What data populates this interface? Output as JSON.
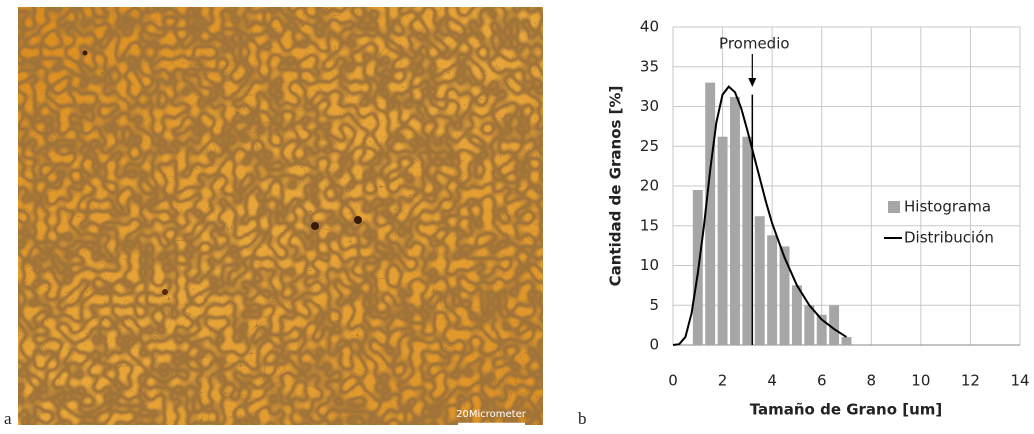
{
  "panel_labels": [
    "a",
    "b"
  ],
  "image": {
    "scale_label": "20Micrometer"
  },
  "chart_data": {
    "type": "bar",
    "xlabel": "Tamaño de Grano [um]",
    "ylabel": "Cantidad de Granos [%]",
    "xlim": [
      0,
      14
    ],
    "xticks": [
      0,
      2,
      4,
      6,
      8,
      10,
      12,
      14
    ],
    "ylim": [
      0,
      40
    ],
    "yticks": [
      0,
      5,
      10,
      15,
      20,
      25,
      30,
      35,
      40
    ],
    "grid": true,
    "legend": "right",
    "series": [
      {
        "name": "Histograma",
        "type": "bar",
        "color": "#a6a6a6",
        "x": [
          1,
          1.5,
          2,
          2.5,
          3,
          3.5,
          4,
          4.5,
          5,
          5.5,
          6,
          6.5,
          7
        ],
        "values": [
          19.5,
          33,
          26.2,
          31.2,
          26.2,
          16.2,
          13.8,
          12.4,
          7.5,
          5,
          3.8,
          5,
          1
        ]
      },
      {
        "name": "Distribución",
        "type": "line",
        "color": "#000000",
        "x": [
          0,
          0.25,
          0.5,
          0.75,
          1,
          1.25,
          1.5,
          1.75,
          2,
          2.25,
          2.5,
          2.75,
          3,
          3.25,
          3.5,
          3.75,
          4,
          4.5,
          5,
          5.5,
          6,
          6.5,
          7
        ],
        "values": [
          0,
          0.1,
          1,
          4,
          9,
          15,
          22,
          28,
          31.5,
          32.5,
          31.8,
          29.8,
          27,
          24,
          21,
          18,
          15.3,
          11,
          7.5,
          5,
          3.2,
          2,
          1
        ]
      }
    ],
    "annotations": [
      {
        "text": "Promedio",
        "x": 3.2,
        "y": 31.5
      }
    ]
  }
}
